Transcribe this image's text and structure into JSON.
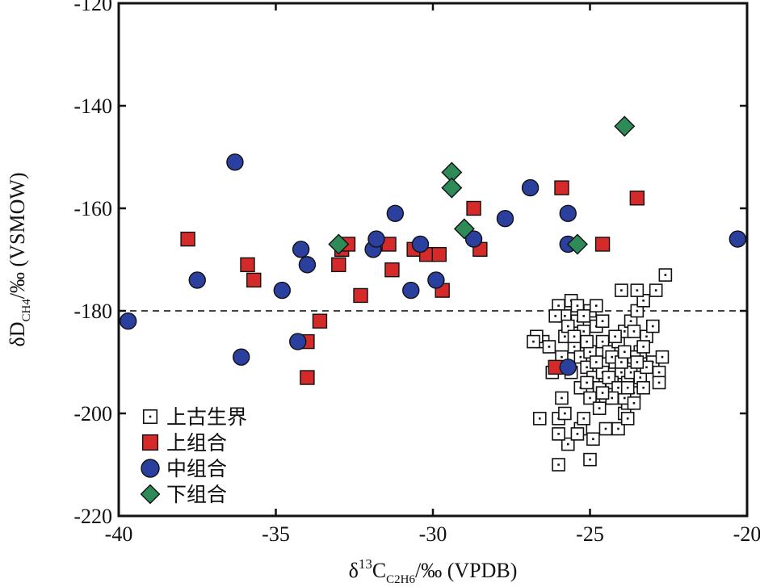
{
  "chart_data": {
    "type": "scatter",
    "xlabel_parts": {
      "delta": "δ",
      "iso": "13",
      "c": "C",
      "sub": "C2H6",
      "unit": "/‰ (VPDB)"
    },
    "ylabel_parts": {
      "delta": "δD",
      "sub": "CH4",
      "unit": "/‰ (VSMOW)"
    },
    "xlim": [
      -40,
      -20
    ],
    "ylim": [
      -220,
      -120
    ],
    "xticks": [
      -40,
      -35,
      -30,
      -25,
      -20
    ],
    "yticks": [
      -220,
      -200,
      -180,
      -160,
      -140,
      -120
    ],
    "reference_line": {
      "y": -180,
      "style": "dashed"
    },
    "legend_position": "bottom-left",
    "colors": {
      "upper": "#d42a2a",
      "middle": "#2a3f9e",
      "lower": "#2e8b57",
      "paleozoic": "#ffffff"
    },
    "series": [
      {
        "name": "上古生界",
        "marker": "square-open-dot",
        "points": [
          [
            -26.5,
            -186
          ],
          [
            -26.2,
            -192
          ],
          [
            -26.3,
            -187
          ],
          [
            -26.0,
            -179
          ],
          [
            -25.8,
            -181
          ],
          [
            -25.6,
            -178
          ],
          [
            -25.4,
            -182
          ],
          [
            -25.2,
            -184
          ],
          [
            -25.0,
            -180
          ],
          [
            -24.8,
            -183
          ],
          [
            -24.6,
            -186
          ],
          [
            -24.4,
            -188
          ],
          [
            -24.2,
            -190
          ],
          [
            -24.0,
            -192
          ],
          [
            -23.8,
            -194
          ],
          [
            -23.6,
            -196
          ],
          [
            -23.4,
            -188
          ],
          [
            -23.2,
            -185
          ],
          [
            -23.0,
            -190
          ],
          [
            -22.8,
            -192
          ],
          [
            -25.8,
            -185
          ],
          [
            -25.5,
            -187
          ],
          [
            -25.3,
            -189
          ],
          [
            -25.1,
            -191
          ],
          [
            -24.9,
            -193
          ],
          [
            -24.7,
            -195
          ],
          [
            -24.5,
            -197
          ],
          [
            -24.3,
            -189
          ],
          [
            -24.1,
            -186
          ],
          [
            -23.9,
            -184
          ],
          [
            -23.7,
            -182
          ],
          [
            -23.5,
            -180
          ],
          [
            -23.3,
            -178
          ],
          [
            -24.0,
            -176
          ],
          [
            -23.5,
            -176
          ],
          [
            -22.9,
            -176
          ],
          [
            -22.6,
            -173
          ],
          [
            -23.0,
            -183
          ],
          [
            -22.7,
            -189
          ],
          [
            -22.8,
            -194
          ],
          [
            -26.0,
            -201
          ],
          [
            -25.7,
            -206
          ],
          [
            -25.3,
            -203
          ],
          [
            -25.0,
            -209
          ],
          [
            -24.9,
            -205
          ],
          [
            -24.5,
            -203
          ],
          [
            -24.1,
            -203
          ],
          [
            -23.9,
            -200
          ],
          [
            -23.8,
            -198
          ],
          [
            -26.0,
            -210
          ],
          [
            -26.6,
            -201
          ],
          [
            -26.0,
            -204
          ],
          [
            -25.4,
            -204
          ],
          [
            -25.2,
            -201
          ],
          [
            -25.9,
            -197
          ],
          [
            -25.3,
            -195
          ],
          [
            -25.0,
            -197
          ],
          [
            -24.7,
            -199
          ],
          [
            -25.6,
            -192
          ],
          [
            -25.1,
            -194
          ],
          [
            -24.6,
            -192
          ],
          [
            -24.3,
            -194
          ],
          [
            -23.9,
            -197
          ],
          [
            -23.6,
            -198
          ],
          [
            -23.7,
            -192
          ],
          [
            -23.4,
            -193
          ],
          [
            -23.2,
            -191
          ],
          [
            -24.2,
            -185
          ],
          [
            -24.6,
            -182
          ],
          [
            -25.0,
            -188
          ],
          [
            -25.7,
            -183
          ],
          [
            -25.9,
            -189
          ],
          [
            -25.5,
            -185
          ],
          [
            -25.1,
            -186
          ],
          [
            -24.8,
            -190
          ],
          [
            -24.4,
            -193
          ],
          [
            -24.0,
            -190
          ],
          [
            -23.6,
            -189
          ],
          [
            -23.3,
            -187
          ],
          [
            -23.9,
            -188
          ],
          [
            -23.6,
            -184
          ],
          [
            -24.1,
            -195
          ],
          [
            -24.3,
            -197
          ],
          [
            -23.8,
            -195
          ],
          [
            -25.4,
            -179
          ],
          [
            -25.2,
            -181
          ],
          [
            -24.8,
            -179
          ],
          [
            -26.1,
            -181
          ],
          [
            -26.7,
            -185
          ],
          [
            -26.8,
            -186
          ],
          [
            -23.5,
            -190
          ],
          [
            -23.3,
            -195
          ],
          [
            -24.6,
            -196
          ],
          [
            -23.8,
            -201
          ],
          [
            -25.8,
            -200
          ]
        ]
      },
      {
        "name": "上组合",
        "marker": "square-filled",
        "points": [
          [
            -37.8,
            -166
          ],
          [
            -35.9,
            -171
          ],
          [
            -35.7,
            -174
          ],
          [
            -33.6,
            -182
          ],
          [
            -34.0,
            -186
          ],
          [
            -34.0,
            -193
          ],
          [
            -33.0,
            -171
          ],
          [
            -32.9,
            -168
          ],
          [
            -32.7,
            -167
          ],
          [
            -32.3,
            -177
          ],
          [
            -31.4,
            -167
          ],
          [
            -31.3,
            -172
          ],
          [
            -30.6,
            -168
          ],
          [
            -30.2,
            -169
          ],
          [
            -29.8,
            -169
          ],
          [
            -29.7,
            -176
          ],
          [
            -28.7,
            -160
          ],
          [
            -28.5,
            -168
          ],
          [
            -26.1,
            -191
          ],
          [
            -25.9,
            -156
          ],
          [
            -24.6,
            -167
          ],
          [
            -23.5,
            -158
          ]
        ]
      },
      {
        "name": "中组合",
        "marker": "circle-filled",
        "points": [
          [
            -39.7,
            -182
          ],
          [
            -37.5,
            -174
          ],
          [
            -36.3,
            -151
          ],
          [
            -36.1,
            -189
          ],
          [
            -34.8,
            -176
          ],
          [
            -34.2,
            -168
          ],
          [
            -34.0,
            -171
          ],
          [
            -34.3,
            -186
          ],
          [
            -31.9,
            -168
          ],
          [
            -31.8,
            -166
          ],
          [
            -31.2,
            -161
          ],
          [
            -30.7,
            -176
          ],
          [
            -30.4,
            -167
          ],
          [
            -29.9,
            -174
          ],
          [
            -28.7,
            -166
          ],
          [
            -27.7,
            -162
          ],
          [
            -26.9,
            -156
          ],
          [
            -25.7,
            -161
          ],
          [
            -25.7,
            -167
          ],
          [
            -25.7,
            -191
          ],
          [
            -20.3,
            -166
          ]
        ]
      },
      {
        "name": "下组合",
        "marker": "diamond-filled",
        "points": [
          [
            -33.0,
            -167
          ],
          [
            -29.4,
            -153
          ],
          [
            -29.4,
            -156
          ],
          [
            -29.0,
            -164
          ],
          [
            -25.4,
            -167
          ],
          [
            -23.9,
            -144
          ]
        ]
      }
    ]
  }
}
